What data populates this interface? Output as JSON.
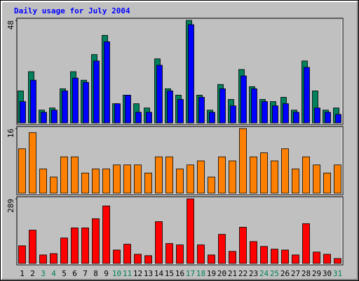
{
  "chart_data": [
    {
      "type": "bar",
      "title": "Daily usage for July 2004",
      "ylim": [
        0,
        48
      ],
      "yticks": [
        48
      ],
      "series": [
        {
          "color": "#00805c",
          "values": [
            15,
            24,
            6,
            7,
            16,
            24,
            20,
            32,
            41,
            9,
            13,
            9,
            7,
            30,
            16,
            13,
            48,
            13,
            6,
            18,
            11,
            25,
            17,
            11,
            10,
            12,
            6,
            29,
            15,
            6,
            7
          ]
        },
        {
          "color": "#0000ff",
          "values": [
            10,
            20,
            5,
            6,
            15,
            21,
            19,
            29,
            38,
            9,
            13,
            5,
            5,
            27,
            15,
            11,
            46,
            12,
            5,
            16,
            8,
            22,
            16,
            10,
            8,
            9,
            5,
            26,
            7,
            5,
            4
          ]
        }
      ]
    },
    {
      "type": "bar",
      "ylim": [
        0,
        16
      ],
      "yticks": [
        16
      ],
      "series": [
        {
          "color": "#ff8000",
          "values": [
            11,
            15,
            6,
            4,
            9,
            9,
            5,
            6,
            6,
            7,
            7,
            7,
            5,
            9,
            9,
            6,
            7,
            8,
            4,
            9,
            8,
            16,
            9,
            10,
            8,
            11,
            6,
            9,
            7,
            5,
            7
          ]
        }
      ]
    },
    {
      "type": "bar",
      "ylim": [
        0,
        289
      ],
      "yticks": [
        289
      ],
      "categories": [
        "1",
        "2",
        "3",
        "4",
        "5",
        "6",
        "7",
        "8",
        "9",
        "10",
        "11",
        "12",
        "13",
        "14",
        "15",
        "16",
        "17",
        "18",
        "19",
        "20",
        "21",
        "22",
        "23",
        "24",
        "25",
        "26",
        "27",
        "28",
        "29",
        "30",
        "31"
      ],
      "category_label_colors": [
        "#000000",
        "#000000",
        "#00805c",
        "#00805c",
        "#000000",
        "#000000",
        "#000000",
        "#000000",
        "#000000",
        "#00805c",
        "#00805c",
        "#000000",
        "#000000",
        "#000000",
        "#000000",
        "#000000",
        "#00805c",
        "#00805c",
        "#000000",
        "#000000",
        "#000000",
        "#000000",
        "#000000",
        "#00805c",
        "#00805c",
        "#000000",
        "#000000",
        "#000000",
        "#000000",
        "#000000",
        "#00805c"
      ],
      "series": [
        {
          "color": "#ff0000",
          "values": [
            79,
            149,
            38,
            44,
            114,
            159,
            159,
            200,
            257,
            60,
            86,
            41,
            35,
            187,
            89,
            83,
            289,
            83,
            38,
            130,
            54,
            162,
            98,
            76,
            64,
            60,
            38,
            178,
            51,
            41,
            22
          ]
        }
      ]
    }
  ]
}
